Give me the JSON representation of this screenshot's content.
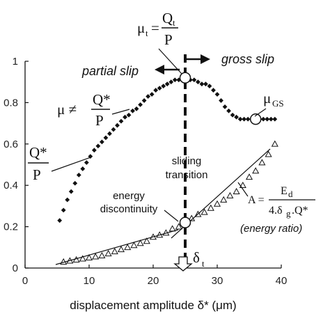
{
  "chart_data": {
    "type": "scatter",
    "xlabel": "displacement amplitude δ* (μm)",
    "xlim": [
      0,
      40
    ],
    "ylim": [
      0,
      1
    ],
    "x_ticks": [
      "0",
      "10",
      "20",
      "30",
      "40"
    ],
    "y_ticks": [
      "0",
      "0.2",
      "0.4",
      "0.6",
      "0.8",
      "1"
    ],
    "grid": false,
    "series": [
      {
        "marker": "filled-diamond",
        "x": [
          5.4,
          6.0,
          6.6,
          7.2,
          7.8,
          8.4,
          9.0,
          9.6,
          10.2,
          10.8,
          11.4,
          12.0,
          12.6,
          13.2,
          13.8,
          14.4,
          15.0,
          15.6,
          16.2,
          16.8,
          17.4,
          18.0,
          18.6,
          19.2,
          19.8,
          20.4,
          21.0,
          21.6,
          22.2,
          22.8,
          23.4,
          24.0,
          24.6,
          25.2,
          25.8,
          26.4,
          27.0,
          27.6,
          28.2,
          28.8,
          29.4,
          30.0,
          30.6,
          31.2,
          31.8,
          32.4,
          33.0,
          33.6,
          34.2,
          34.8,
          35.4,
          36.0,
          36.6,
          37.2,
          37.8,
          38.4,
          39.0
        ],
        "y": [
          0.23,
          0.28,
          0.33,
          0.37,
          0.41,
          0.45,
          0.48,
          0.51,
          0.54,
          0.57,
          0.59,
          0.61,
          0.63,
          0.65,
          0.67,
          0.69,
          0.71,
          0.73,
          0.74,
          0.76,
          0.77,
          0.79,
          0.81,
          0.83,
          0.84,
          0.86,
          0.87,
          0.88,
          0.89,
          0.9,
          0.91,
          0.91,
          0.92,
          0.92,
          0.91,
          0.91,
          0.9,
          0.89,
          0.89,
          0.88,
          0.86,
          0.84,
          0.81,
          0.78,
          0.76,
          0.74,
          0.73,
          0.72,
          0.72,
          0.72,
          0.72,
          0.72,
          0.72,
          0.72,
          0.72,
          0.72,
          0.72
        ]
      },
      {
        "marker": "open-triangle",
        "x": [
          6.0,
          7.0,
          8.0,
          9.0,
          10.0,
          11.0,
          12.0,
          13.0,
          14.0,
          15.0,
          16.0,
          17.0,
          18.0,
          19.0,
          20.0,
          21.0,
          22.0,
          23.0,
          24.0,
          25.0,
          26.0,
          27.0,
          28.0,
          29.0,
          30.0,
          31.0,
          32.0,
          33.0,
          34.0,
          35.0,
          36.0,
          37.0,
          38.0,
          39.0
        ],
        "y": [
          0.03,
          0.035,
          0.04,
          0.045,
          0.05,
          0.055,
          0.06,
          0.07,
          0.08,
          0.09,
          0.1,
          0.11,
          0.12,
          0.13,
          0.15,
          0.16,
          0.17,
          0.19,
          0.2,
          0.22,
          0.24,
          0.26,
          0.27,
          0.29,
          0.31,
          0.33,
          0.35,
          0.37,
          0.4,
          0.44,
          0.47,
          0.51,
          0.55,
          0.6
        ]
      }
    ],
    "transition_x": 25,
    "markers": {
      "transition_friction": {
        "x": 25,
        "y": 0.92
      },
      "gross_slip_friction": {
        "x": 36,
        "y": 0.72
      },
      "energy_discontinuity": {
        "x": 25,
        "y": 0.22
      }
    }
  },
  "annotations": {
    "regime_left": "partial slip",
    "regime_right": "gross slip",
    "transition_line1": "sliding",
    "transition_line2": "transition",
    "energy_line1": "energy",
    "energy_line2": "discontinuity",
    "energy_ratio": "(energy ratio)",
    "mu_t_lhs": "μ",
    "mu_t_sub": "t",
    "eq": "=",
    "Qt_num": "Q",
    "Qt_sub": "t",
    "Qt_den": "P",
    "mu_neq": "μ ≠",
    "Qstar": "Q*",
    "P": "P",
    "mu_gs": "μ",
    "mu_gs_sub": "GS",
    "delta_t": "δ",
    "delta_t_sub": "t",
    "A_lhs": "A =",
    "A_num": "E",
    "A_num_sub": "d",
    "A_den": "4.δ",
    "A_den_sub": "g",
    "A_den_rest": ".Q*"
  }
}
